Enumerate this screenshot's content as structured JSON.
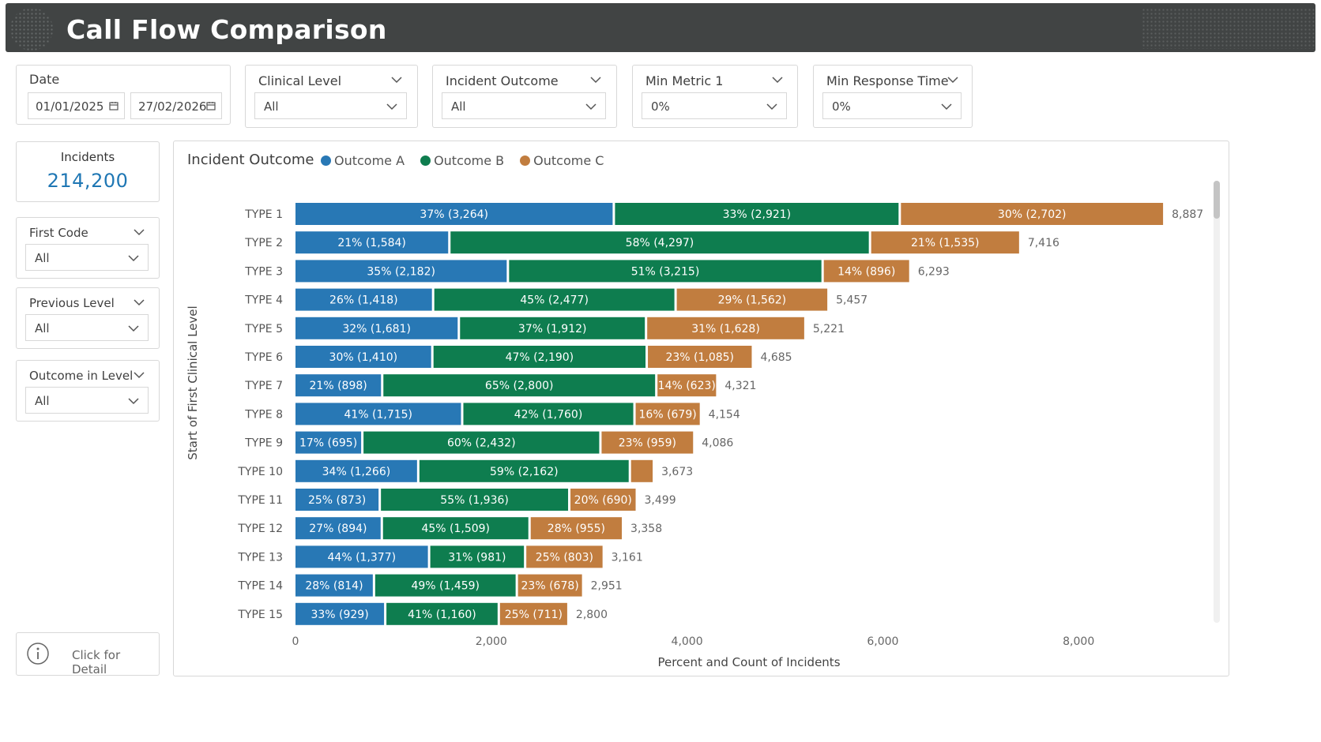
{
  "header": {
    "title": "Call Flow Comparison"
  },
  "slicers": {
    "date": {
      "label": "Date",
      "start": "01/01/2025",
      "end": "27/02/2026"
    },
    "clinical_level": {
      "label": "Clinical Level",
      "value": "All"
    },
    "incident_outcome": {
      "label": "Incident Outcome",
      "value": "All"
    },
    "min_metric_1": {
      "label": "Min Metric 1",
      "value": "0%"
    },
    "min_response_time": {
      "label": "Min Response Time",
      "value": "0%"
    },
    "first_code": {
      "label": "First Code",
      "value": "All"
    },
    "previous_level": {
      "label": "Previous Level",
      "value": "All"
    },
    "outcome_in_level": {
      "label": "Outcome in Level",
      "value": "All"
    }
  },
  "kpi": {
    "label": "Incidents",
    "value": "214,200"
  },
  "detail_button": {
    "label": "Click for Detail"
  },
  "colors": {
    "outcome_a": "#2878b5",
    "outcome_b": "#0e7d4f",
    "outcome_c": "#c17d3f"
  },
  "chart_data": {
    "type": "bar",
    "orientation": "horizontal",
    "stacked": true,
    "title": "Incident Outcome",
    "xlabel": "Percent and Count of Incidents",
    "ylabel": "Start of First Clinical Level",
    "xlim": [
      0,
      9000
    ],
    "xticks": [
      0,
      2000,
      4000,
      6000,
      8000
    ],
    "xtick_labels": [
      "0",
      "2,000",
      "4,000",
      "6,000",
      "8,000"
    ],
    "legend_position": "top",
    "categories": [
      "TYPE 1",
      "TYPE 2",
      "TYPE 3",
      "TYPE 4",
      "TYPE 5",
      "TYPE 6",
      "TYPE 7",
      "TYPE 8",
      "TYPE 9",
      "TYPE 10",
      "TYPE 11",
      "TYPE 12",
      "TYPE 13",
      "TYPE 14",
      "TYPE 15"
    ],
    "series": [
      {
        "name": "Outcome A",
        "color": "#2878b5",
        "values": [
          3264,
          1584,
          2182,
          1418,
          1681,
          1410,
          898,
          1715,
          695,
          1266,
          873,
          894,
          1377,
          814,
          929
        ],
        "labels": [
          "37% (3,264)",
          "21% (1,584)",
          "35% (2,182)",
          "26% (1,418)",
          "32% (1,681)",
          "30% (1,410)",
          "21% (898)",
          "41% (1,715)",
          "17% (695)",
          "34% (1,266)",
          "25% (873)",
          "27% (894)",
          "44% (1,377)",
          "28% (814)",
          "33% (929)"
        ]
      },
      {
        "name": "Outcome B",
        "color": "#0e7d4f",
        "values": [
          2921,
          4297,
          3215,
          2477,
          1912,
          2190,
          2800,
          1760,
          2432,
          2162,
          1936,
          1509,
          981,
          1459,
          1160
        ],
        "labels": [
          "33% (2,921)",
          "58% (4,297)",
          "51% (3,215)",
          "45% (2,477)",
          "37% (1,912)",
          "47% (2,190)",
          "65% (2,800)",
          "42% (1,760)",
          "60% (2,432)",
          "59% (2,162)",
          "55% (1,936)",
          "45% (1,509)",
          "31% (981)",
          "49% (1,459)",
          "41% (1,160)"
        ]
      },
      {
        "name": "Outcome C",
        "color": "#c17d3f",
        "values": [
          2702,
          1535,
          896,
          1562,
          1628,
          1085,
          623,
          679,
          959,
          245,
          690,
          955,
          803,
          678,
          711
        ],
        "labels": [
          "30% (2,702)",
          "21% (1,535)",
          "14% (896)",
          "29% (1,562)",
          "31% (1,628)",
          "23% (1,085)",
          "14% (623)",
          "16% (679)",
          "23% (959)",
          "",
          "20% (690)",
          "28% (955)",
          "25% (803)",
          "23% (678)",
          "25% (711)"
        ]
      }
    ],
    "totals": [
      8887,
      7416,
      6293,
      5457,
      5221,
      4685,
      4321,
      4154,
      4086,
      3673,
      3499,
      3358,
      3161,
      2951,
      2800
    ],
    "total_labels": [
      "8,887",
      "7,416",
      "6,293",
      "5,457",
      "5,221",
      "4,685",
      "4,321",
      "4,154",
      "4,086",
      "3,673",
      "3,499",
      "3,358",
      "3,161",
      "2,951",
      "2,800"
    ]
  }
}
